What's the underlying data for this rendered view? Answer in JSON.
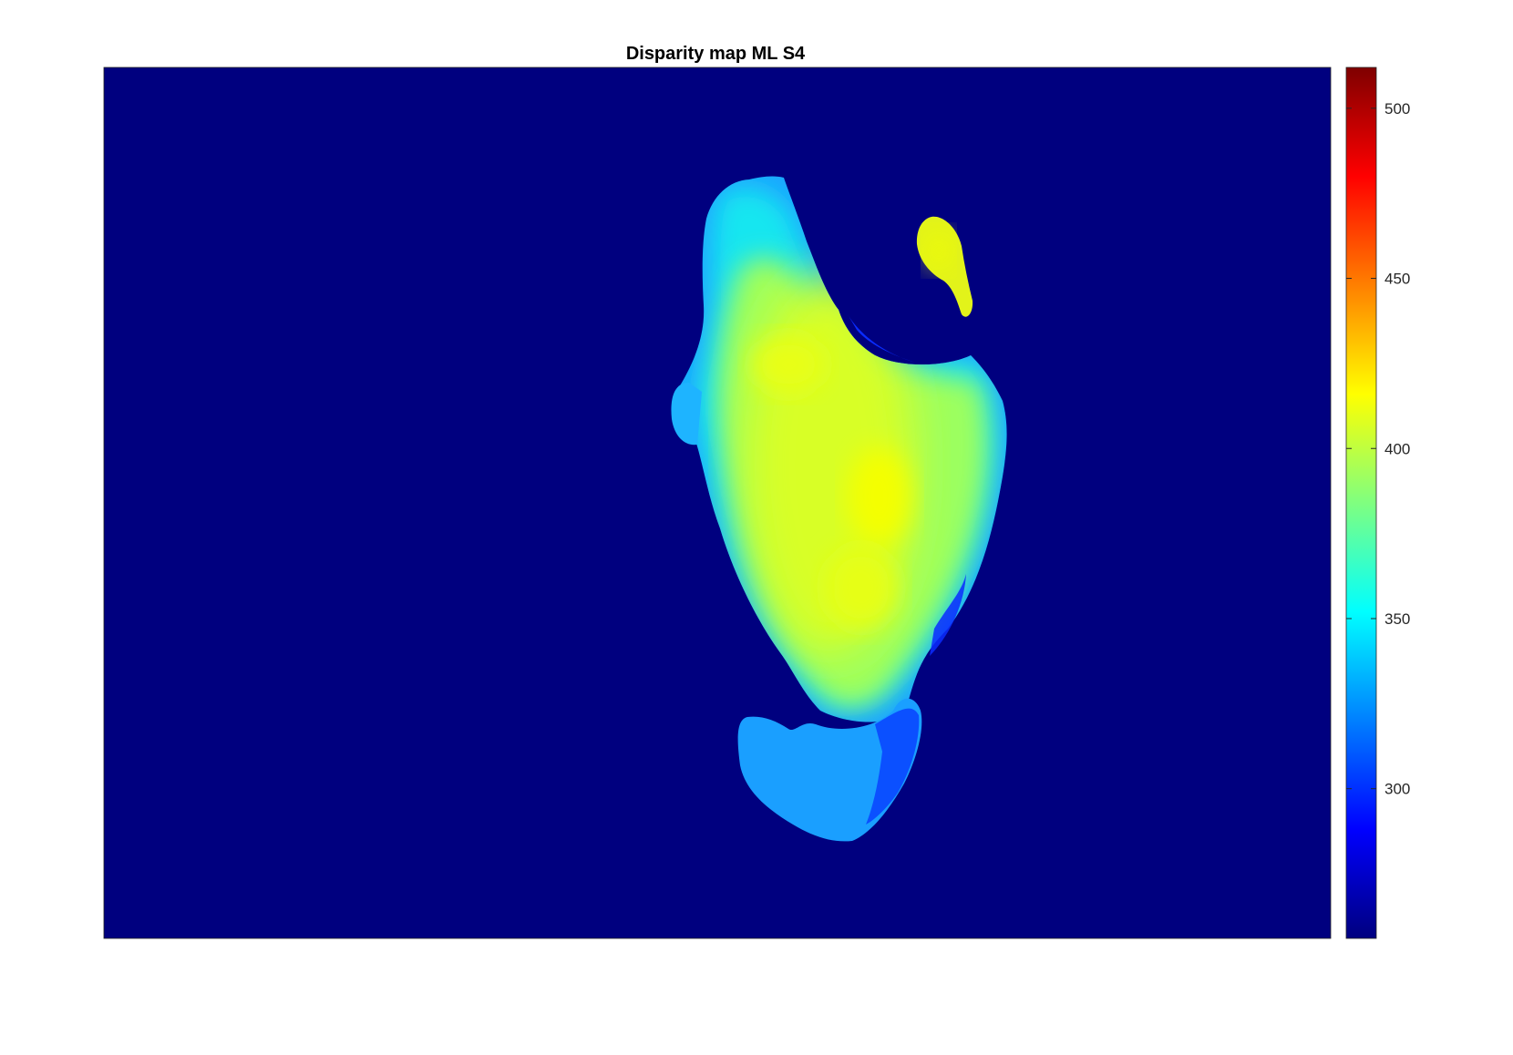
{
  "chart_data": {
    "type": "heatmap",
    "title": "Disparity map ML S4",
    "xlabel": "",
    "ylabel": "",
    "colormap": "jet",
    "background_color": "#00007f",
    "colorbar": {
      "range": [
        256,
        512
      ],
      "ticks": [
        300,
        350,
        400,
        450,
        500
      ],
      "tick_labels": [
        "300",
        "350",
        "400",
        "450",
        "500"
      ],
      "placement": "right"
    },
    "axes_ticks_visible": false,
    "grid": false,
    "regions": [
      {
        "name": "main-blob",
        "value_range": [
          320,
          415
        ]
      },
      {
        "name": "small-blob",
        "value_range": [
          395,
          412
        ]
      },
      {
        "name": "lower-blob",
        "value_range": [
          305,
          330
        ]
      }
    ]
  }
}
